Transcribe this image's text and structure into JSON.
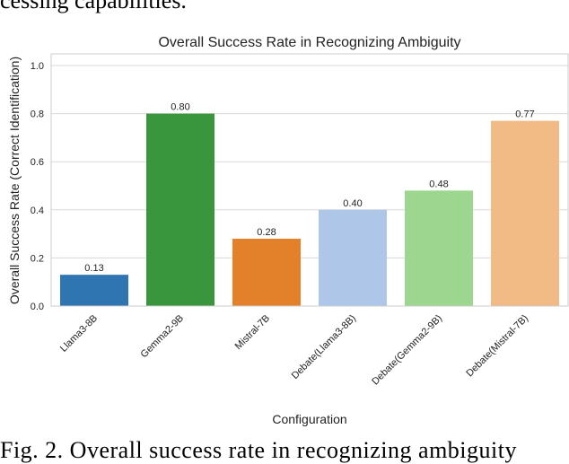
{
  "top_text": "cessing capabilities.",
  "caption": "Fig. 2.  Overall success rate in recognizing ambiguity",
  "chart_data": {
    "type": "bar",
    "title": "Overall Success Rate in Recognizing Ambiguity",
    "xlabel": "Configuration",
    "ylabel": "Overall Success Rate (Correct Identification)",
    "ylim": [
      0,
      1.05
    ],
    "yticks": [
      "0.0",
      "0.2",
      "0.4",
      "0.6",
      "0.8",
      "1.0"
    ],
    "grid": true,
    "categories": [
      "Llama3-8B",
      "Gemma2-9B",
      "Mistral-7B",
      "Debate(Llama3-8B)",
      "Debate(Gemma2-9B)",
      "Debate(Mistral-7B)"
    ],
    "values": [
      0.13,
      0.8,
      0.28,
      0.4,
      0.48,
      0.77
    ],
    "data_labels": [
      "0.13",
      "0.80",
      "0.28",
      "0.40",
      "0.48",
      "0.77"
    ],
    "colors": [
      "#2f75b1",
      "#3a963c",
      "#e3812b",
      "#aec7e8",
      "#9dd68e",
      "#f2bb86"
    ]
  }
}
